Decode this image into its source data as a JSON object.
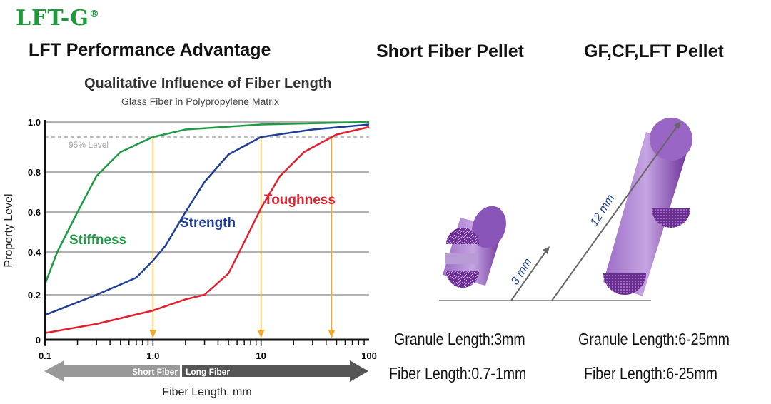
{
  "logo": {
    "text": "LFT-G",
    "mark": "®"
  },
  "headings": {
    "left": "LFT Performance Advantage",
    "middle": "Short Fiber Pellet",
    "right": "GF,CF,LFT Pellet"
  },
  "chart_data": {
    "type": "line",
    "title": "Qualitative Influence of Fiber Length",
    "subtitle": "Glass Fiber in Polypropylene Matrix",
    "xlabel": "Fiber Length, mm",
    "ylabel": "Property Level",
    "xscale": "log",
    "xlim": [
      0.1,
      100
    ],
    "ylim": [
      0,
      1.0
    ],
    "xticks": [
      "0.1",
      "1.0",
      "10",
      "100"
    ],
    "yticks": [
      "0",
      "0.2",
      "0.4",
      "0.6",
      "0.8",
      "1.0"
    ],
    "grid": true,
    "reference_line": {
      "label": "95% Level",
      "y": 0.95
    },
    "arrows_x": [
      1,
      10,
      45
    ],
    "bands": {
      "short": "Short Fiber",
      "long": "Long Fiber"
    },
    "series": [
      {
        "name": "Stiffness",
        "color": "#1e9a45",
        "points": [
          [
            0.1,
            0.25
          ],
          [
            0.13,
            0.4
          ],
          [
            0.2,
            0.6
          ],
          [
            0.3,
            0.78
          ],
          [
            0.5,
            0.88
          ],
          [
            1,
            0.94
          ],
          [
            2,
            0.97
          ],
          [
            10,
            0.99
          ],
          [
            100,
            1.0
          ]
        ]
      },
      {
        "name": "Strength",
        "color": "#1f3f96",
        "points": [
          [
            0.1,
            0.11
          ],
          [
            0.3,
            0.2
          ],
          [
            0.7,
            0.28
          ],
          [
            1,
            0.36
          ],
          [
            1.3,
            0.43
          ],
          [
            2,
            0.6
          ],
          [
            3,
            0.75
          ],
          [
            5,
            0.87
          ],
          [
            10,
            0.94
          ],
          [
            30,
            0.97
          ],
          [
            100,
            0.99
          ]
        ]
      },
      {
        "name": "Toughness",
        "color": "#e0202e",
        "points": [
          [
            0.1,
            0.03
          ],
          [
            0.3,
            0.07
          ],
          [
            1,
            0.13
          ],
          [
            2,
            0.18
          ],
          [
            3,
            0.2
          ],
          [
            5,
            0.3
          ],
          [
            7,
            0.45
          ],
          [
            10,
            0.62
          ],
          [
            15,
            0.78
          ],
          [
            25,
            0.88
          ],
          [
            50,
            0.95
          ],
          [
            100,
            0.98
          ]
        ]
      }
    ]
  },
  "pellets": {
    "short_dim": "3 mm",
    "long_dim": "12 mm",
    "color": "#7b3fa8"
  },
  "captions": {
    "short_granule": "Granule Length:3mm",
    "short_fiber": "Fiber Length:0.7-1mm",
    "long_granule": "Granule Length:6-25mm",
    "long_fiber": "Fiber Length:6-25mm"
  }
}
